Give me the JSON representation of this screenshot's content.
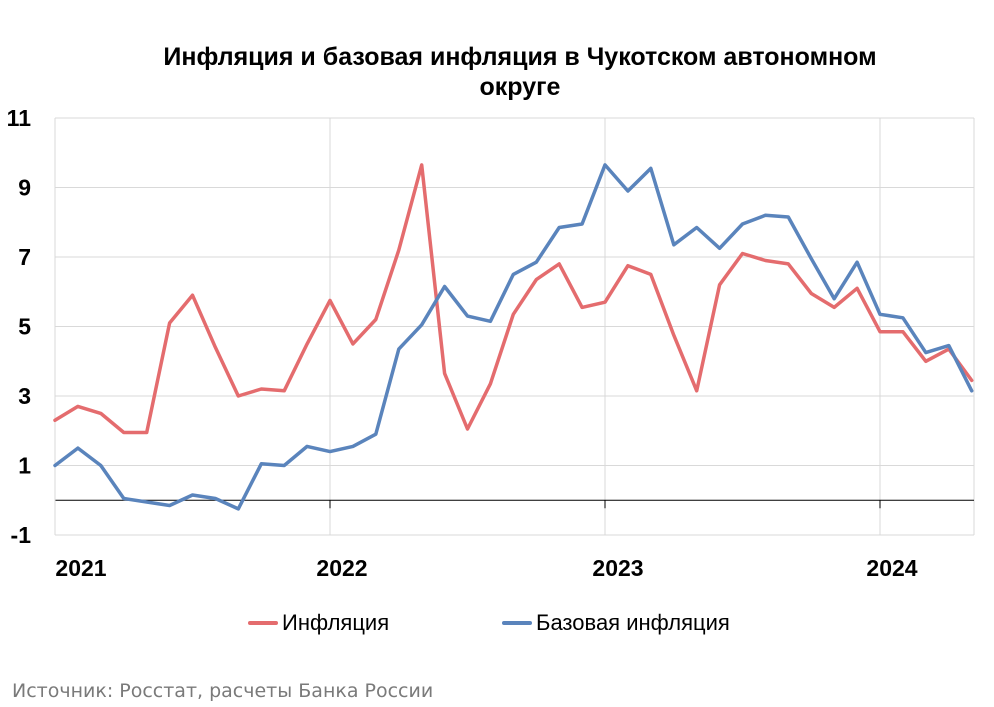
{
  "title_line1": "Инфляция и базовая инфляция в Чукотском автономном",
  "title_line2": "округе",
  "source": "Источник: Росстат, расчеты Банка России",
  "colors": {
    "inflation": "#e46c6e",
    "core": "#5a84bc",
    "grid": "#d9d9d9",
    "axis": "#000000"
  },
  "chart_data": {
    "type": "line",
    "title": "Инфляция и базовая инфляция в Чукотском автономном округе",
    "xlabel": "",
    "ylabel": "",
    "ylim": [
      -1,
      11
    ],
    "yticks": [
      -1,
      1,
      3,
      5,
      7,
      9,
      11
    ],
    "x_start": "2021-01",
    "x_end": "2024-05",
    "xtick_labels": [
      "2021",
      "2022",
      "2023",
      "2024"
    ],
    "grid": true,
    "legend_position": "bottom",
    "series": [
      {
        "name": "Инфляция",
        "color": "#e46c6e",
        "values": [
          2.3,
          2.7,
          2.5,
          1.95,
          1.95,
          5.1,
          5.9,
          4.4,
          3.0,
          3.2,
          3.15,
          4.5,
          5.75,
          4.5,
          5.2,
          7.2,
          9.65,
          3.65,
          2.05,
          3.35,
          5.35,
          6.35,
          6.8,
          5.55,
          5.7,
          6.75,
          6.5,
          4.75,
          3.15,
          6.2,
          7.1,
          6.9,
          6.8,
          5.95,
          5.55,
          6.1,
          4.85,
          4.85,
          4.0,
          4.35,
          3.45
        ]
      },
      {
        "name": "Базовая инфляция",
        "color": "#5a84bc",
        "values": [
          1.0,
          1.5,
          1.0,
          0.05,
          -0.05,
          -0.15,
          0.15,
          0.05,
          -0.25,
          1.05,
          1.0,
          1.55,
          1.4,
          1.55,
          1.9,
          4.35,
          5.05,
          6.15,
          5.3,
          5.15,
          6.5,
          6.85,
          7.85,
          7.95,
          9.65,
          8.9,
          9.55,
          7.35,
          7.85,
          7.25,
          7.95,
          8.2,
          8.15,
          6.95,
          5.8,
          6.85,
          5.35,
          5.25,
          4.25,
          4.45,
          3.15
        ]
      }
    ]
  }
}
